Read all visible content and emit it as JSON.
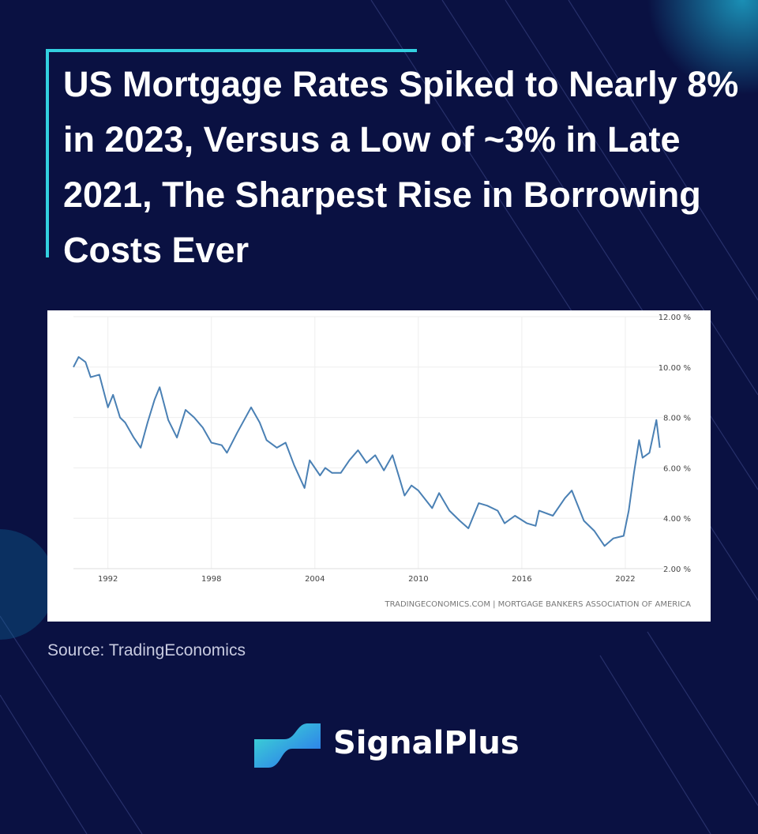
{
  "brand": "SignalPlus",
  "chart_data": {
    "type": "line",
    "title": "US Mortgage Rates Spiked to Nearly 8% in 2023, Versus a Low of ~3% in Late 2021, The Sharpest Rise in Borrowing Costs Ever",
    "source": "Source: TradingEconomics",
    "credit": "TRADINGECONOMICS.COM | MORTGAGE BANKERS ASSOCIATION OF AMERICA",
    "color": "#4a80b4",
    "grid": true,
    "xlim": [
      1990,
      2024.2
    ],
    "xticks": [
      1992,
      1998,
      2004,
      2010,
      2016,
      2022
    ],
    "ylim": [
      2,
      12
    ],
    "yticks": [
      {
        "value": 2,
        "label": "2.00 %"
      },
      {
        "value": 4,
        "label": "4.00 %"
      },
      {
        "value": 6,
        "label": "6.00 %"
      },
      {
        "value": 8,
        "label": "8.00 %"
      },
      {
        "value": 10,
        "label": "10.00 %"
      },
      {
        "value": 12,
        "label": "12.00 %"
      }
    ],
    "x": [
      1990.0,
      1990.3,
      1990.7,
      1991.0,
      1991.5,
      1992.0,
      1992.3,
      1992.7,
      1993.0,
      1993.5,
      1993.9,
      1994.3,
      1994.7,
      1995.0,
      1995.5,
      1996.0,
      1996.5,
      1997.0,
      1997.5,
      1998.0,
      1998.6,
      1998.9,
      1999.5,
      2000.3,
      2000.8,
      2001.2,
      2001.8,
      2002.3,
      2002.8,
      2003.4,
      2003.7,
      2004.3,
      2004.6,
      2005.0,
      2005.5,
      2006.0,
      2006.5,
      2007.0,
      2007.5,
      2008.0,
      2008.5,
      2008.9,
      2009.2,
      2009.6,
      2010.0,
      2010.8,
      2011.2,
      2011.8,
      2012.4,
      2012.9,
      2013.5,
      2014.0,
      2014.6,
      2015.0,
      2015.6,
      2016.3,
      2016.8,
      2017.0,
      2017.8,
      2018.5,
      2018.9,
      2019.6,
      2020.2,
      2020.8,
      2021.3,
      2021.9,
      2022.2,
      2022.5,
      2022.8,
      2023.0,
      2023.4,
      2023.8,
      2024.0
    ],
    "values": [
      10.0,
      10.4,
      10.2,
      9.6,
      9.7,
      8.4,
      8.9,
      8.0,
      7.8,
      7.2,
      6.8,
      7.8,
      8.7,
      9.2,
      7.9,
      7.2,
      8.3,
      8.0,
      7.6,
      7.0,
      6.9,
      6.6,
      7.4,
      8.4,
      7.8,
      7.1,
      6.8,
      7.0,
      6.1,
      5.2,
      6.3,
      5.7,
      6.0,
      5.8,
      5.8,
      6.3,
      6.7,
      6.2,
      6.5,
      5.9,
      6.5,
      5.6,
      4.9,
      5.3,
      5.1,
      4.4,
      5.0,
      4.3,
      3.9,
      3.6,
      4.6,
      4.5,
      4.3,
      3.8,
      4.1,
      3.8,
      3.7,
      4.3,
      4.1,
      4.8,
      5.1,
      3.9,
      3.5,
      2.9,
      3.2,
      3.3,
      4.3,
      5.8,
      7.1,
      6.4,
      6.6,
      7.9,
      6.8
    ]
  }
}
